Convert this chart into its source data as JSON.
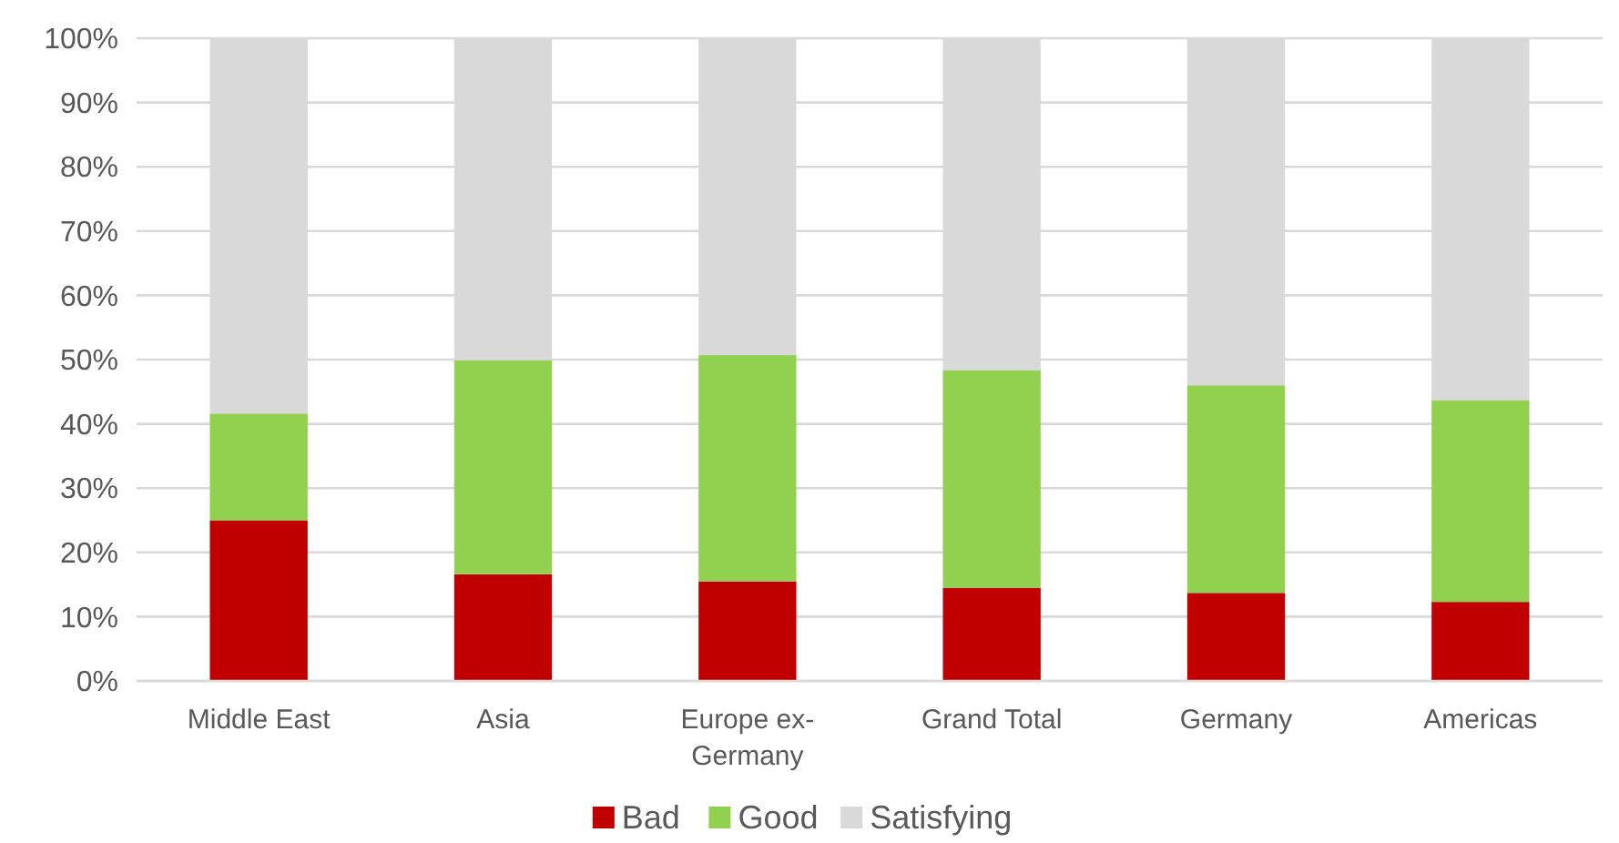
{
  "chart_data": {
    "type": "bar",
    "stacked": true,
    "categories": [
      "Middle East",
      "Asia",
      "Europe ex-Germany",
      "Grand Total",
      "Germany",
      "Americas"
    ],
    "series": [
      {
        "name": "Bad",
        "color": "#c00000",
        "values": [
          25,
          16.6,
          15.5,
          14.5,
          13.7,
          12.3
        ]
      },
      {
        "name": "Good",
        "color": "#92d050",
        "values": [
          16.6,
          33.3,
          35.2,
          33.8,
          32.3,
          31.4
        ]
      },
      {
        "name": "Satisfying",
        "color": "#d9d9d9",
        "values": [
          58.4,
          50.1,
          49.3,
          51.7,
          54,
          56.3
        ]
      }
    ],
    "ylim": [
      0,
      100
    ],
    "yticks": [
      {
        "value": 0,
        "label": "0%"
      },
      {
        "value": 10,
        "label": "10%"
      },
      {
        "value": 20,
        "label": "20%"
      },
      {
        "value": 30,
        "label": "30%"
      },
      {
        "value": 40,
        "label": "40%"
      },
      {
        "value": 50,
        "label": "50%"
      },
      {
        "value": 60,
        "label": "60%"
      },
      {
        "value": 70,
        "label": "70%"
      },
      {
        "value": 80,
        "label": "80%"
      },
      {
        "value": 90,
        "label": "90%"
      },
      {
        "value": 100,
        "label": "100%"
      }
    ],
    "grid": "y",
    "legend": "bottom"
  }
}
